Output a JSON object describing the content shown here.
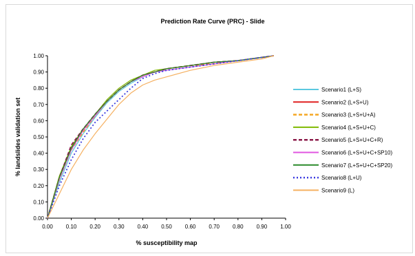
{
  "chart_data": {
    "type": "line",
    "title": "Prediction Rate Curve (PRC) - Slide",
    "xlabel": "% susceptibility map",
    "ylabel": "% landslides validation set",
    "xlim": [
      0,
      1
    ],
    "ylim": [
      0,
      1
    ],
    "x_ticks": [
      "0.00",
      "0.10",
      "0.20",
      "0.30",
      "0.40",
      "0.50",
      "0.60",
      "0.70",
      "0.80",
      "0.90",
      "1.00"
    ],
    "y_ticks": [
      "0.00",
      "0.10",
      "0.20",
      "0.30",
      "0.40",
      "0.50",
      "0.60",
      "0.70",
      "0.80",
      "0.90",
      "1.00"
    ],
    "grid": false,
    "legend_position": "right",
    "series": [
      {
        "name": "Scenario1 (L+S)",
        "color": "#5bc8e0",
        "dash": "solid",
        "x": [
          0,
          0.05,
          0.1,
          0.15,
          0.2,
          0.25,
          0.3,
          0.35,
          0.4,
          0.45,
          0.5,
          0.6,
          0.7,
          0.8,
          0.9,
          0.95
        ],
        "y": [
          0,
          0.22,
          0.4,
          0.52,
          0.62,
          0.71,
          0.78,
          0.83,
          0.87,
          0.9,
          0.91,
          0.93,
          0.95,
          0.97,
          0.99,
          1.0
        ]
      },
      {
        "name": "Scenario2 (L+S+U)",
        "color": "#e02020",
        "dash": "solid",
        "x": [
          0,
          0.05,
          0.1,
          0.15,
          0.2,
          0.25,
          0.3,
          0.35,
          0.4,
          0.45,
          0.5,
          0.6,
          0.7,
          0.8,
          0.9,
          0.95
        ],
        "y": [
          0,
          0.25,
          0.43,
          0.54,
          0.63,
          0.72,
          0.79,
          0.84,
          0.88,
          0.9,
          0.92,
          0.94,
          0.96,
          0.97,
          0.99,
          1.0
        ]
      },
      {
        "name": "Scenario3 (L+S+U+A)",
        "color": "#f5a623",
        "dash": "dashed",
        "x": [
          0,
          0.05,
          0.1,
          0.15,
          0.2,
          0.25,
          0.3,
          0.35,
          0.4,
          0.45,
          0.5,
          0.6,
          0.7,
          0.8,
          0.9,
          0.95
        ],
        "y": [
          0,
          0.24,
          0.42,
          0.53,
          0.63,
          0.72,
          0.79,
          0.84,
          0.88,
          0.9,
          0.92,
          0.94,
          0.95,
          0.97,
          0.99,
          1.0
        ]
      },
      {
        "name": "Scenario4 (L+S+U+C)",
        "color": "#7fba00",
        "dash": "solid",
        "x": [
          0,
          0.05,
          0.1,
          0.15,
          0.2,
          0.25,
          0.3,
          0.35,
          0.4,
          0.45,
          0.5,
          0.6,
          0.7,
          0.8,
          0.9,
          0.95
        ],
        "y": [
          0,
          0.26,
          0.44,
          0.55,
          0.64,
          0.73,
          0.8,
          0.85,
          0.88,
          0.91,
          0.92,
          0.94,
          0.96,
          0.97,
          0.99,
          1.0
        ]
      },
      {
        "name": "Scenario5 (L+S+U+C+R)",
        "color": "#8b1a4a",
        "dash": "dashed",
        "x": [
          0,
          0.05,
          0.1,
          0.15,
          0.2,
          0.25,
          0.3,
          0.35,
          0.4,
          0.45,
          0.5,
          0.6,
          0.7,
          0.8,
          0.9,
          0.95
        ],
        "y": [
          0,
          0.25,
          0.45,
          0.55,
          0.64,
          0.72,
          0.79,
          0.84,
          0.88,
          0.9,
          0.92,
          0.94,
          0.96,
          0.97,
          0.99,
          1.0
        ]
      },
      {
        "name": "Scenario6 (L+S+U+C+SP10)",
        "color": "#e055e0",
        "dash": "solid",
        "x": [
          0,
          0.05,
          0.1,
          0.15,
          0.2,
          0.25,
          0.3,
          0.35,
          0.4,
          0.45,
          0.5,
          0.6,
          0.7,
          0.8,
          0.9,
          0.95
        ],
        "y": [
          0,
          0.24,
          0.42,
          0.54,
          0.63,
          0.72,
          0.79,
          0.84,
          0.87,
          0.9,
          0.91,
          0.93,
          0.95,
          0.97,
          0.99,
          1.0
        ]
      },
      {
        "name": "Scenario7 (L+S+U+C+SP20)",
        "color": "#2a8a2a",
        "dash": "solid",
        "x": [
          0,
          0.05,
          0.1,
          0.15,
          0.2,
          0.25,
          0.3,
          0.35,
          0.4,
          0.45,
          0.5,
          0.6,
          0.7,
          0.8,
          0.9,
          0.95
        ],
        "y": [
          0,
          0.25,
          0.43,
          0.55,
          0.64,
          0.72,
          0.79,
          0.84,
          0.88,
          0.9,
          0.92,
          0.94,
          0.96,
          0.97,
          0.99,
          1.0
        ]
      },
      {
        "name": "Scenario8 (L+U)",
        "color": "#3a3ae0",
        "dash": "dotted",
        "x": [
          0,
          0.05,
          0.1,
          0.15,
          0.2,
          0.25,
          0.3,
          0.35,
          0.4,
          0.45,
          0.5,
          0.6,
          0.7,
          0.8,
          0.9,
          0.95
        ],
        "y": [
          0,
          0.2,
          0.36,
          0.49,
          0.59,
          0.66,
          0.73,
          0.8,
          0.86,
          0.89,
          0.91,
          0.93,
          0.95,
          0.97,
          0.99,
          1.0
        ]
      },
      {
        "name": "Scenario9 (L)",
        "color": "#f5b060",
        "dash": "solid",
        "x": [
          0,
          0.05,
          0.1,
          0.15,
          0.2,
          0.25,
          0.3,
          0.35,
          0.4,
          0.45,
          0.5,
          0.6,
          0.7,
          0.8,
          0.9,
          0.95
        ],
        "y": [
          0,
          0.15,
          0.3,
          0.42,
          0.52,
          0.61,
          0.7,
          0.77,
          0.82,
          0.85,
          0.87,
          0.91,
          0.94,
          0.96,
          0.98,
          1.0
        ]
      }
    ]
  }
}
